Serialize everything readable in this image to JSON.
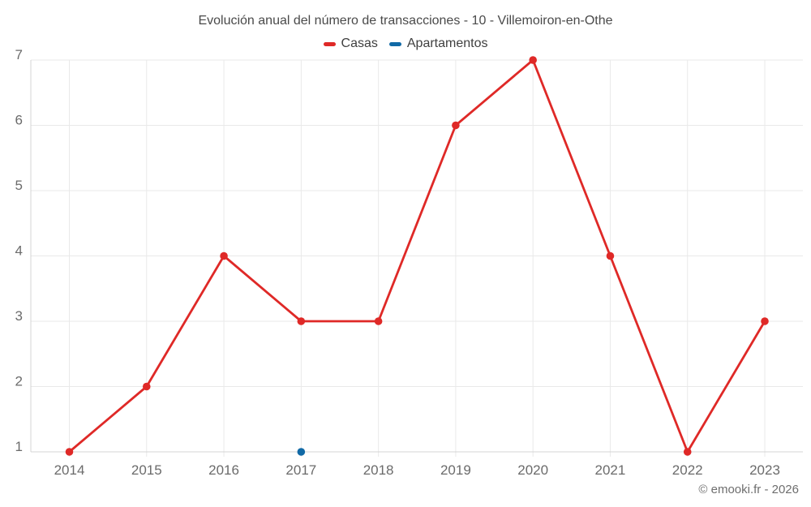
{
  "chart_data": {
    "type": "line",
    "title": "Evolución anual del número de transacciones - 10 - Villemoiron-en-Othe",
    "categories": [
      "2014",
      "2015",
      "2016",
      "2017",
      "2018",
      "2019",
      "2020",
      "2021",
      "2022",
      "2023"
    ],
    "series": [
      {
        "name": "Casas",
        "color": "#df2927",
        "marker_radius": 4.8,
        "draw_line": true,
        "values": [
          1,
          2,
          4,
          3,
          3,
          6,
          7,
          4,
          1,
          3
        ]
      },
      {
        "name": "Apartamentos",
        "color": "#1169a6",
        "marker_radius": 4.8,
        "draw_line": false,
        "values": [
          null,
          null,
          null,
          1,
          null,
          null,
          null,
          null,
          null,
          null
        ]
      }
    ],
    "xlabel": "",
    "ylabel": "",
    "ylim": [
      1,
      7
    ],
    "yticks": [
      1,
      2,
      3,
      4,
      5,
      6,
      7
    ],
    "grid": true,
    "legend_position": "top"
  },
  "colors": {
    "grid": "#e9e9e9",
    "axis": "#d4d4d4",
    "title_text": "#4a4a4a",
    "legend_text": "#3f3f3f",
    "tick_text": "#6b6b6b",
    "footer_text": "#6e6e6e"
  },
  "footer": {
    "credit": "© emooki.fr - 2026"
  }
}
